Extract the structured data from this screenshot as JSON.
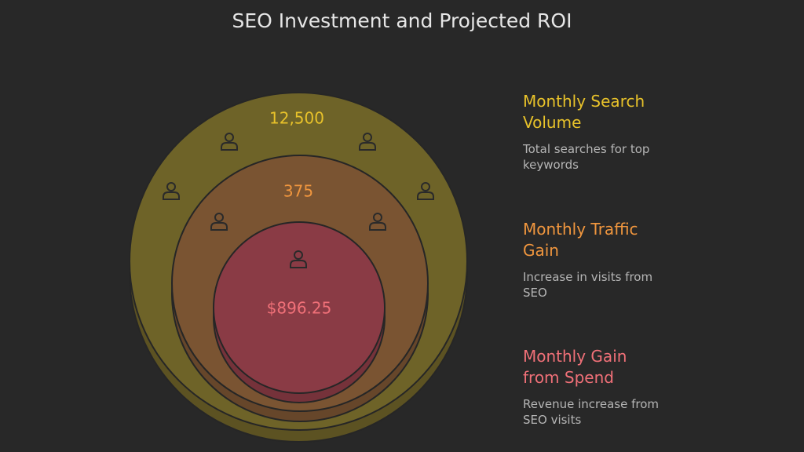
{
  "title": "SEO Investment and Projected ROI",
  "levels": [
    {
      "value": "12,500",
      "heading": [
        "Monthly Search",
        "Volume"
      ],
      "description": [
        "Total searches for top",
        "keywords"
      ]
    },
    {
      "value": "375",
      "heading": [
        "Monthly Traffic",
        "Gain"
      ],
      "description": [
        "Increase in visits from",
        "SEO"
      ]
    },
    {
      "value": "$896.25",
      "heading": [
        "Monthly Gain",
        "from Spend"
      ],
      "description": [
        "Revenue increase from",
        "SEO visits"
      ]
    }
  ]
}
